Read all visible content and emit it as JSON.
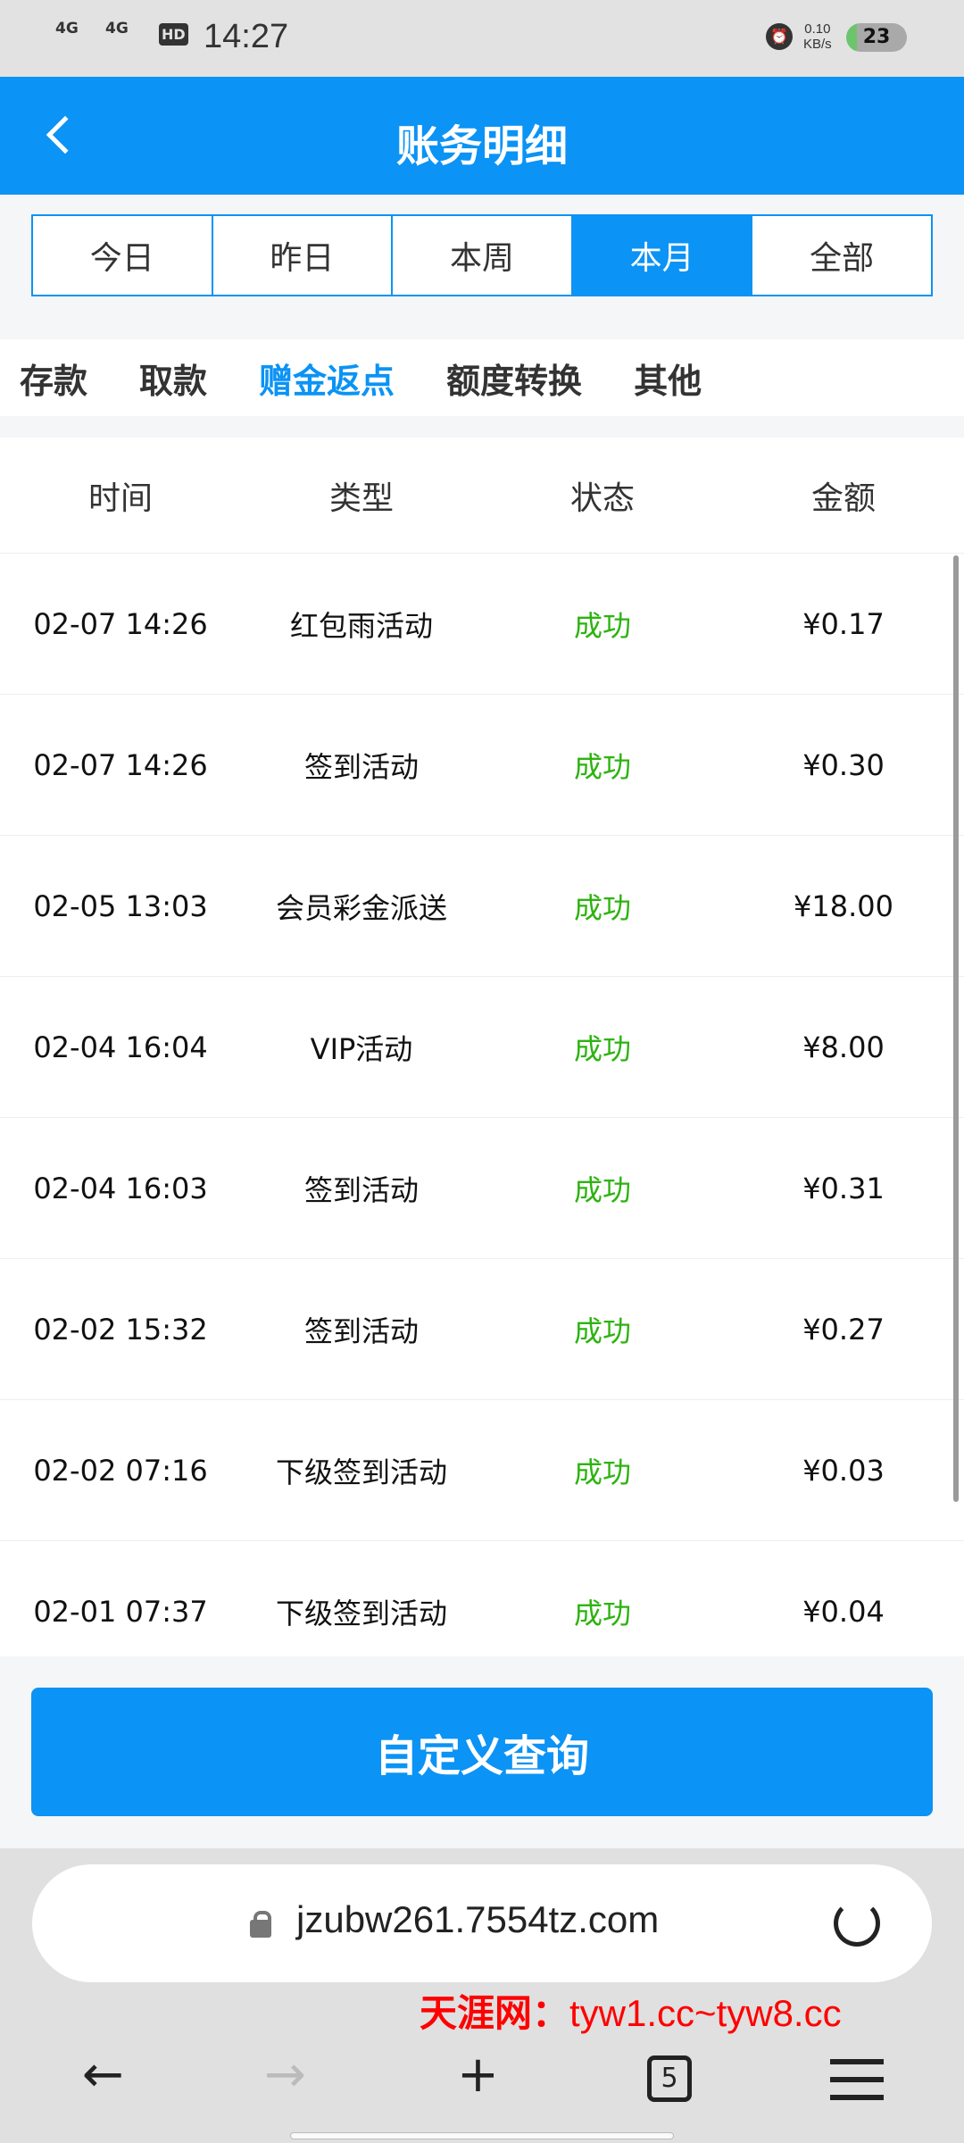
{
  "status_bar": {
    "network1": "4G",
    "network2": "4G",
    "hd": "HD",
    "time": "14:27",
    "speed_value": "0.10",
    "speed_unit": "KB/s",
    "battery": "23"
  },
  "header": {
    "title": "账务明细",
    "back_icon": "chevron-left-icon"
  },
  "ranges": [
    {
      "label": "今日"
    },
    {
      "label": "昨日"
    },
    {
      "label": "本周"
    },
    {
      "label": "本月",
      "active": true
    },
    {
      "label": "全部"
    }
  ],
  "categories": [
    {
      "label": "存款"
    },
    {
      "label": "取款"
    },
    {
      "label": "赠金返点",
      "active": true
    },
    {
      "label": "额度转换"
    },
    {
      "label": "其他"
    }
  ],
  "table": {
    "columns": [
      "时间",
      "类型",
      "状态",
      "金额"
    ],
    "rows": [
      {
        "time": "02-07 14:26",
        "type": "红包雨活动",
        "status": "成功",
        "amount": "¥0.17"
      },
      {
        "time": "02-07 14:26",
        "type": "签到活动",
        "status": "成功",
        "amount": "¥0.30"
      },
      {
        "time": "02-05 13:03",
        "type": "会员彩金派送",
        "status": "成功",
        "amount": "¥18.00"
      },
      {
        "time": "02-04 16:04",
        "type": "VIP活动",
        "status": "成功",
        "amount": "¥8.00"
      },
      {
        "time": "02-04 16:03",
        "type": "签到活动",
        "status": "成功",
        "amount": "¥0.31"
      },
      {
        "time": "02-02 15:32",
        "type": "签到活动",
        "status": "成功",
        "amount": "¥0.27"
      },
      {
        "time": "02-02 07:16",
        "type": "下级签到活动",
        "status": "成功",
        "amount": "¥0.03"
      },
      {
        "time": "02-01 07:37",
        "type": "下级签到活动",
        "status": "成功",
        "amount": "¥0.04"
      }
    ]
  },
  "custom_query_label": "自定义查询",
  "browser": {
    "url": "jzubw261.7554tz.com",
    "tab_count": "5",
    "watermark_cn": "天涯网：",
    "watermark_url": "tyw1.cc~tyw8.cc"
  },
  "colors": {
    "accent": "#0b93f5",
    "success": "#2db30f"
  }
}
